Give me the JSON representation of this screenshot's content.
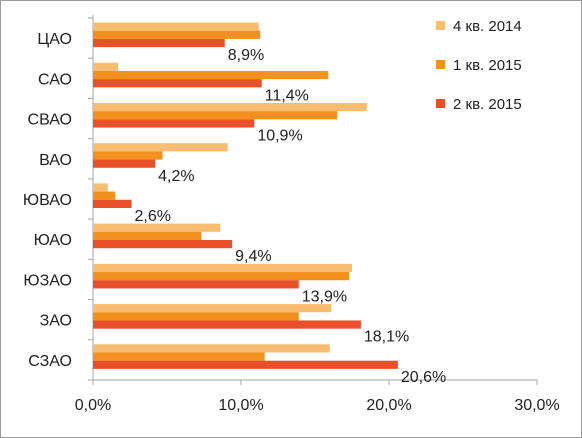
{
  "chart_data": {
    "type": "bar",
    "orientation": "horizontal",
    "categories": [
      "ЦАО",
      "САО",
      "СВАО",
      "ВАО",
      "ЮВАО",
      "ЮАО",
      "ЮЗАО",
      "ЗАО",
      "СЗАО"
    ],
    "series": [
      {
        "name": "4 кв. 2014",
        "color": "#f9bd72",
        "values": [
          11.2,
          1.7,
          18.5,
          9.1,
          1.0,
          8.6,
          17.5,
          16.1,
          16.0
        ]
      },
      {
        "name": "1 кв. 2015",
        "color": "#f3911e",
        "values": [
          11.3,
          15.9,
          16.5,
          4.7,
          1.5,
          7.3,
          17.3,
          13.9,
          11.6
        ]
      },
      {
        "name": "2 кв. 2015",
        "color": "#e8502a",
        "values": [
          8.9,
          11.4,
          10.9,
          4.2,
          2.6,
          9.4,
          13.9,
          18.1,
          20.6
        ]
      }
    ],
    "data_labels": [
      "8,9%",
      "11,4%",
      "10,9%",
      "4,2%",
      "2,6%",
      "9,4%",
      "13,9%",
      "18,1%",
      "20,6%"
    ],
    "xlim": [
      0,
      30
    ],
    "x_ticks": [
      0,
      10,
      20,
      30
    ],
    "x_tick_labels": [
      "0,0%",
      "10,0%",
      "20,0%",
      "30,0%"
    ],
    "grid": false,
    "legend_position": "top-right",
    "title": "",
    "xlabel": "",
    "ylabel": ""
  }
}
